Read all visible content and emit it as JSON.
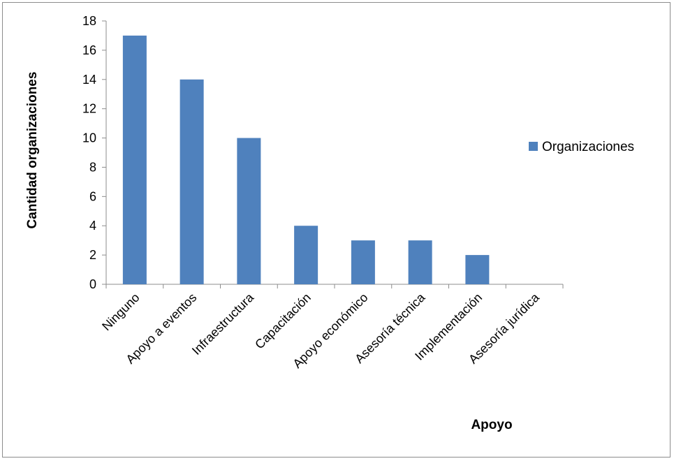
{
  "chart_data": {
    "type": "bar",
    "categories": [
      "Ninguno",
      "Apoyo a eventos",
      "Infraestructura",
      "Capacitación",
      "Apoyo económico",
      "Asesoría técnica",
      "Implementación",
      "Asesoría jurídica"
    ],
    "series": [
      {
        "name": "Organizaciones",
        "values": [
          17,
          14,
          10,
          4,
          3,
          3,
          2,
          0
        ],
        "color": "#4F81BD"
      }
    ],
    "yticks": [
      "0",
      "2",
      "4",
      "6",
      "8",
      "10",
      "12",
      "14",
      "16",
      "18"
    ],
    "xlabel": "Apoyo",
    "ylabel": "Cantidad organizaciones",
    "ylim": [
      0,
      18
    ],
    "grid": false,
    "legend": "right"
  }
}
